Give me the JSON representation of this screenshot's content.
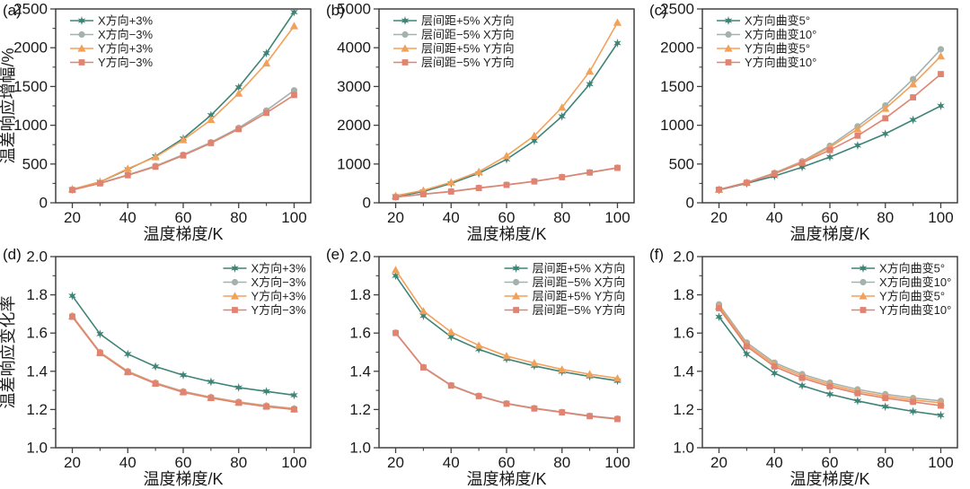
{
  "figure": {
    "background": "#ffffff",
    "frame_color": "#404040",
    "text_color": "#1a1a1a",
    "xlabel": "温度梯度/K",
    "ylabel_row1": "温差响应增幅/%",
    "ylabel_row2": "温差响应变化率"
  },
  "colors": {
    "teal": "#3E8476",
    "gray": "#A5B2AC",
    "orange": "#F2A15B",
    "red": "#E08471"
  },
  "chart_data": [
    {
      "id": "a",
      "panel_label": "(a)",
      "type": "line",
      "xlabel": "温度梯度/K",
      "ylabel": "温差响应增幅/%",
      "x": [
        20,
        30,
        40,
        50,
        60,
        70,
        80,
        90,
        100
      ],
      "xlim": [
        14,
        106
      ],
      "ylim": [
        0,
        2500
      ],
      "xticks": [
        20,
        40,
        60,
        80,
        100
      ],
      "xminor": [
        30,
        50,
        70,
        90
      ],
      "yticks": [
        0,
        500,
        1000,
        1500,
        2000,
        2500
      ],
      "ytick_labels": [
        "0",
        "500",
        "1000",
        "1500",
        "2000",
        "2500"
      ],
      "yminor_step": 250,
      "legend_pos": "tl",
      "grid": false,
      "series": [
        {
          "name": "X方向+3%",
          "color": "teal",
          "marker": "star",
          "values": [
            170,
            270,
            430,
            600,
            830,
            1130,
            1490,
            1930,
            2460
          ]
        },
        {
          "name": "X方向−3%",
          "color": "gray",
          "marker": "circle",
          "values": [
            170,
            255,
            360,
            475,
            620,
            780,
            965,
            1190,
            1450
          ]
        },
        {
          "name": "Y方向+3%",
          "color": "orange",
          "marker": "triangle",
          "values": [
            175,
            270,
            440,
            590,
            810,
            1070,
            1410,
            1800,
            2280
          ]
        },
        {
          "name": "Y方向−3%",
          "color": "red",
          "marker": "square",
          "values": [
            165,
            250,
            355,
            465,
            610,
            770,
            950,
            1160,
            1390
          ]
        }
      ]
    },
    {
      "id": "b",
      "panel_label": "(b)",
      "type": "line",
      "xlabel": "温度梯度/K",
      "ylabel": "",
      "x": [
        20,
        30,
        40,
        50,
        60,
        70,
        80,
        90,
        100
      ],
      "xlim": [
        14,
        106
      ],
      "ylim": [
        0,
        5000
      ],
      "xticks": [
        20,
        40,
        60,
        80,
        100
      ],
      "xminor": [
        30,
        50,
        70,
        90
      ],
      "yticks": [
        0,
        1000,
        2000,
        3000,
        4000,
        5000
      ],
      "ytick_labels": [
        "0",
        "1000",
        "2000",
        "3000",
        "4000",
        "5000"
      ],
      "yminor_step": 500,
      "legend_pos": "tl",
      "grid": false,
      "series": [
        {
          "name": "层间距+5% X方向",
          "color": "teal",
          "marker": "star",
          "values": [
            160,
            290,
            500,
            760,
            1120,
            1600,
            2230,
            3060,
            4120
          ]
        },
        {
          "name": "层间距−5% X方向",
          "color": "gray",
          "marker": "circle",
          "values": [
            150,
            225,
            295,
            385,
            465,
            555,
            665,
            785,
            905
          ]
        },
        {
          "name": "层间距+5% Y方向",
          "color": "orange",
          "marker": "triangle",
          "values": [
            180,
            320,
            530,
            800,
            1210,
            1730,
            2460,
            3390,
            4650
          ]
        },
        {
          "name": "层间距−5% Y方向",
          "color": "red",
          "marker": "square",
          "values": [
            145,
            220,
            290,
            380,
            460,
            550,
            660,
            780,
            900
          ]
        }
      ]
    },
    {
      "id": "c",
      "panel_label": "(c)",
      "type": "line",
      "xlabel": "温度梯度/K",
      "ylabel": "",
      "x": [
        20,
        30,
        40,
        50,
        60,
        70,
        80,
        90,
        100
      ],
      "xlim": [
        14,
        106
      ],
      "ylim": [
        0,
        2500
      ],
      "xticks": [
        20,
        40,
        60,
        80,
        100
      ],
      "xminor": [
        30,
        50,
        70,
        90
      ],
      "yticks": [
        0,
        500,
        1000,
        1500,
        2000,
        2500
      ],
      "ytick_labels": [
        "0",
        "500",
        "1000",
        "1500",
        "2000",
        "2500"
      ],
      "yminor_step": 250,
      "legend_pos": "tl",
      "grid": false,
      "series": [
        {
          "name": "X方向曲变5°",
          "color": "teal",
          "marker": "star",
          "values": [
            165,
            250,
            345,
            460,
            590,
            740,
            890,
            1070,
            1250
          ]
        },
        {
          "name": "X方向曲变10°",
          "color": "gray",
          "marker": "circle",
          "values": [
            170,
            262,
            385,
            535,
            735,
            985,
            1255,
            1595,
            1980
          ]
        },
        {
          "name": "Y方向曲变5°",
          "color": "orange",
          "marker": "triangle",
          "values": [
            170,
            260,
            380,
            525,
            715,
            950,
            1215,
            1530,
            1890
          ]
        },
        {
          "name": "Y方向曲变10°",
          "color": "red",
          "marker": "square",
          "values": [
            170,
            258,
            375,
            515,
            680,
            865,
            1090,
            1360,
            1660
          ]
        }
      ]
    },
    {
      "id": "d",
      "panel_label": "(d)",
      "type": "line",
      "xlabel": "温度梯度/K",
      "ylabel": "温差响应变化率",
      "x": [
        20,
        30,
        40,
        50,
        60,
        70,
        80,
        90,
        100
      ],
      "xlim": [
        14,
        106
      ],
      "ylim": [
        1.0,
        2.0
      ],
      "xticks": [
        20,
        40,
        60,
        80,
        100
      ],
      "xminor": [
        30,
        50,
        70,
        90
      ],
      "yticks": [
        1.0,
        1.2,
        1.4,
        1.6,
        1.8,
        2.0
      ],
      "ytick_labels": [
        "1.0",
        "1.2",
        "1.4",
        "1.6",
        "1.8",
        "2.0"
      ],
      "yminor_step": 0.1,
      "legend_pos": "tr",
      "grid": false,
      "series": [
        {
          "name": "X方向+3%",
          "color": "teal",
          "marker": "star",
          "values": [
            1.795,
            1.595,
            1.49,
            1.425,
            1.38,
            1.345,
            1.315,
            1.295,
            1.275
          ]
        },
        {
          "name": "X方向−3%",
          "color": "gray",
          "marker": "circle",
          "values": [
            1.69,
            1.5,
            1.4,
            1.34,
            1.295,
            1.265,
            1.24,
            1.22,
            1.205
          ]
        },
        {
          "name": "Y方向+3%",
          "color": "orange",
          "marker": "triangle",
          "values": [
            1.688,
            1.498,
            1.398,
            1.338,
            1.293,
            1.263,
            1.238,
            1.218,
            1.203
          ]
        },
        {
          "name": "Y方向−3%",
          "color": "red",
          "marker": "square",
          "values": [
            1.685,
            1.495,
            1.395,
            1.335,
            1.29,
            1.26,
            1.235,
            1.215,
            1.2
          ]
        }
      ]
    },
    {
      "id": "e",
      "panel_label": "(e)",
      "type": "line",
      "xlabel": "温度梯度/K",
      "ylabel": "",
      "x": [
        20,
        30,
        40,
        50,
        60,
        70,
        80,
        90,
        100
      ],
      "xlim": [
        14,
        106
      ],
      "ylim": [
        1.0,
        2.0
      ],
      "xticks": [
        20,
        40,
        60,
        80,
        100
      ],
      "xminor": [
        30,
        50,
        70,
        90
      ],
      "yticks": [
        1.0,
        1.2,
        1.4,
        1.6,
        1.8,
        2.0
      ],
      "ytick_labels": [
        "1.0",
        "1.2",
        "1.4",
        "1.6",
        "1.8",
        "2.0"
      ],
      "yminor_step": 0.1,
      "legend_pos": "tr",
      "grid": false,
      "series": [
        {
          "name": "层间距+5% X方向",
          "color": "teal",
          "marker": "star",
          "values": [
            1.9,
            1.69,
            1.58,
            1.515,
            1.465,
            1.428,
            1.398,
            1.373,
            1.35
          ]
        },
        {
          "name": "层间距−5% X方向",
          "color": "gray",
          "marker": "circle",
          "values": [
            1.602,
            1.422,
            1.327,
            1.272,
            1.232,
            1.207,
            1.187,
            1.167,
            1.152
          ]
        },
        {
          "name": "层间距+5% Y方向",
          "color": "orange",
          "marker": "triangle",
          "values": [
            1.93,
            1.715,
            1.605,
            1.535,
            1.48,
            1.443,
            1.41,
            1.385,
            1.363
          ]
        },
        {
          "name": "层间距−5% Y方向",
          "color": "red",
          "marker": "square",
          "values": [
            1.6,
            1.42,
            1.325,
            1.27,
            1.23,
            1.205,
            1.185,
            1.165,
            1.15
          ]
        }
      ]
    },
    {
      "id": "f",
      "panel_label": "(f)",
      "type": "line",
      "xlabel": "温度梯度/K",
      "ylabel": "",
      "x": [
        20,
        30,
        40,
        50,
        60,
        70,
        80,
        90,
        100
      ],
      "xlim": [
        14,
        106
      ],
      "ylim": [
        1.0,
        2.0
      ],
      "xticks": [
        20,
        40,
        60,
        80,
        100
      ],
      "xminor": [
        30,
        50,
        70,
        90
      ],
      "yticks": [
        1.0,
        1.2,
        1.4,
        1.6,
        1.8,
        2.0
      ],
      "ytick_labels": [
        "1.0",
        "1.2",
        "1.4",
        "1.6",
        "1.8",
        "2.0"
      ],
      "yminor_step": 0.1,
      "legend_pos": "tr",
      "grid": false,
      "series": [
        {
          "name": "X方向曲变5°",
          "color": "teal",
          "marker": "star",
          "values": [
            1.685,
            1.49,
            1.39,
            1.325,
            1.28,
            1.245,
            1.215,
            1.19,
            1.17
          ]
        },
        {
          "name": "X方向曲变10°",
          "color": "gray",
          "marker": "circle",
          "values": [
            1.75,
            1.55,
            1.445,
            1.385,
            1.34,
            1.305,
            1.28,
            1.26,
            1.245
          ]
        },
        {
          "name": "Y方向曲变5°",
          "color": "orange",
          "marker": "triangle",
          "values": [
            1.74,
            1.54,
            1.435,
            1.375,
            1.33,
            1.295,
            1.27,
            1.25,
            1.235
          ]
        },
        {
          "name": "Y方向曲变10°",
          "color": "red",
          "marker": "square",
          "values": [
            1.73,
            1.53,
            1.425,
            1.365,
            1.32,
            1.285,
            1.26,
            1.24,
            1.22
          ]
        }
      ]
    }
  ]
}
